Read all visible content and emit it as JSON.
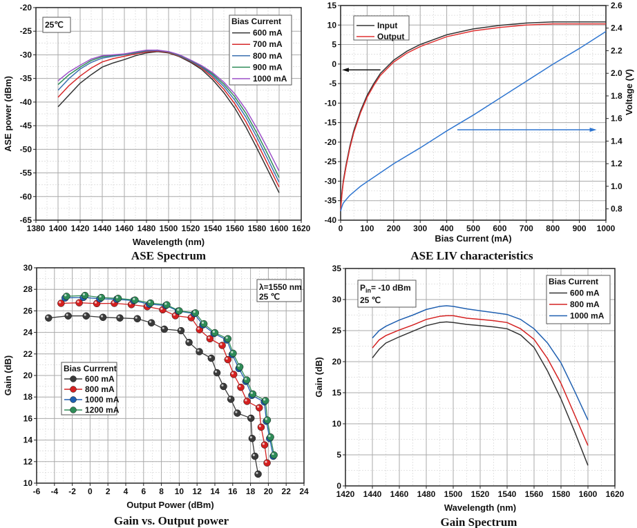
{
  "chart_data": [
    {
      "type": "line",
      "title": "ASE Spectrum",
      "xlabel": "Wavelength (nm)",
      "ylabel": "ASE power (dBm)",
      "xlim": [
        1380,
        1620
      ],
      "xticks_step": 20,
      "ylim": [
        -65,
        -20
      ],
      "yticks_step": 5,
      "grid": true,
      "annotation": [
        "25℃"
      ],
      "legend": {
        "title": "Bias Current",
        "placement": "top-right"
      },
      "series": [
        {
          "name": "600 mA",
          "color": "#333333",
          "x": [
            1400,
            1410,
            1420,
            1430,
            1440,
            1450,
            1460,
            1470,
            1480,
            1490,
            1500,
            1510,
            1520,
            1530,
            1540,
            1550,
            1560,
            1570,
            1580,
            1590,
            1600
          ],
          "y": [
            -41,
            -38.5,
            -36,
            -34.2,
            -32.6,
            -31.7,
            -31,
            -30.2,
            -29.6,
            -29.3,
            -29.6,
            -30.4,
            -31.6,
            -33.1,
            -35.3,
            -38,
            -41.3,
            -45.3,
            -49.8,
            -54.5,
            -59.2
          ]
        },
        {
          "name": "700 mA",
          "color": "#d62728",
          "x": [
            1400,
            1410,
            1420,
            1430,
            1440,
            1450,
            1460,
            1470,
            1480,
            1490,
            1500,
            1510,
            1520,
            1530,
            1540,
            1550,
            1560,
            1570,
            1580,
            1590,
            1600
          ],
          "y": [
            -39,
            -36.5,
            -34.5,
            -32.8,
            -31.5,
            -30.8,
            -30.3,
            -29.8,
            -29.4,
            -29.2,
            -29.5,
            -30.3,
            -31.4,
            -32.8,
            -34.8,
            -37.3,
            -40.4,
            -44.2,
            -48.6,
            -53.3,
            -58
          ]
        },
        {
          "name": "800 mA",
          "color": "#3a6fb0",
          "x": [
            1400,
            1410,
            1420,
            1430,
            1440,
            1450,
            1460,
            1470,
            1480,
            1490,
            1500,
            1510,
            1520,
            1530,
            1540,
            1550,
            1560,
            1570,
            1580,
            1590,
            1600
          ],
          "y": [
            -37.5,
            -35,
            -33,
            -31.6,
            -30.7,
            -30.3,
            -30,
            -29.6,
            -29.2,
            -29.1,
            -29.4,
            -30.2,
            -31.3,
            -32.6,
            -34.4,
            -36.7,
            -39.6,
            -43.2,
            -47.5,
            -52.2,
            -57
          ]
        },
        {
          "name": "900 mA",
          "color": "#2e8b57",
          "x": [
            1400,
            1410,
            1420,
            1430,
            1440,
            1450,
            1460,
            1470,
            1480,
            1490,
            1500,
            1510,
            1520,
            1530,
            1540,
            1550,
            1560,
            1570,
            1580,
            1590,
            1600
          ],
          "y": [
            -36.3,
            -34.2,
            -32.6,
            -31.2,
            -30.4,
            -30.1,
            -29.9,
            -29.5,
            -29.1,
            -29,
            -29.4,
            -30.1,
            -31.2,
            -32.4,
            -34.1,
            -36.2,
            -38.9,
            -42.4,
            -46.6,
            -51.2,
            -56
          ]
        },
        {
          "name": "1000 mA",
          "color": "#9b4fc7",
          "x": [
            1400,
            1410,
            1420,
            1430,
            1440,
            1450,
            1460,
            1470,
            1480,
            1490,
            1500,
            1510,
            1520,
            1530,
            1540,
            1550,
            1560,
            1570,
            1580,
            1590,
            1600
          ],
          "y": [
            -35.5,
            -33.6,
            -32.2,
            -30.9,
            -30.2,
            -30,
            -29.8,
            -29.4,
            -29,
            -29,
            -29.3,
            -30,
            -31.1,
            -32.3,
            -33.8,
            -35.8,
            -38.3,
            -41.6,
            -45.6,
            -50,
            -54.6
          ]
        }
      ],
      "caption": "ASE Spectrum"
    },
    {
      "type": "line",
      "title": "ASE LIV characteristics",
      "xlabel": "Bias Current (mA)",
      "ylabel": "",
      "ylabel_right": "Voltage (V)",
      "xlim": [
        0,
        1000
      ],
      "xticks_step": 100,
      "ylim": [
        -40,
        15
      ],
      "yticks_step": 5,
      "ylim_right": [
        0.7,
        2.6
      ],
      "yticks_right": [
        0.8,
        1.0,
        1.2,
        1.4,
        1.6,
        1.8,
        2.0,
        2.2,
        2.4,
        2.6
      ],
      "grid": true,
      "legend": {
        "placement": "top-left"
      },
      "series": [
        {
          "name": "Input",
          "color": "#333333",
          "axis": "left",
          "x": [
            0,
            5,
            10,
            20,
            35,
            50,
            75,
            100,
            125,
            150,
            200,
            250,
            300,
            400,
            500,
            600,
            700,
            800,
            900,
            1000
          ],
          "y": [
            -37,
            -33,
            -30,
            -26,
            -21,
            -17,
            -12,
            -8,
            -5,
            -2.4,
            1,
            3.3,
            5,
            7.5,
            9,
            9.9,
            10.5,
            10.8,
            10.8,
            10.8
          ]
        },
        {
          "name": "Output",
          "color": "#e03030",
          "axis": "left",
          "x": [
            0,
            5,
            10,
            20,
            35,
            50,
            75,
            100,
            125,
            150,
            200,
            250,
            300,
            400,
            500,
            600,
            700,
            800,
            900,
            1000
          ],
          "y": [
            -37.5,
            -33.5,
            -30.5,
            -26.5,
            -21.5,
            -17.5,
            -12.5,
            -8.5,
            -5.5,
            -2.9,
            0.5,
            2.8,
            4.5,
            7,
            8.5,
            9.4,
            10,
            10.3,
            10.3,
            10.3
          ]
        },
        {
          "color": "#2e75d0",
          "axis": "right",
          "x": [
            0,
            5,
            10,
            20,
            35,
            50,
            75,
            100,
            150,
            200,
            300,
            400,
            500,
            600,
            700,
            800,
            900,
            1000
          ],
          "y": [
            0.78,
            0.82,
            0.85,
            0.88,
            0.92,
            0.95,
            1.0,
            1.04,
            1.12,
            1.2,
            1.34,
            1.49,
            1.63,
            1.78,
            1.93,
            2.08,
            2.22,
            2.37
          ]
        }
      ],
      "caption": "ASE LIV characteristics"
    },
    {
      "type": "line",
      "title": "Gain vs. Output power",
      "xlabel": "Output Power (dBm)",
      "ylabel": "Gain (dB)",
      "xlim": [
        -6,
        24
      ],
      "xticks_step": 2,
      "ylim": [
        10,
        30
      ],
      "yticks_step": 2,
      "grid": true,
      "annotation": [
        "λ=1550 nm",
        "25 ℃"
      ],
      "legend": {
        "title": "Bias Currrent",
        "placement": "middle-left"
      },
      "series": [
        {
          "name": "600 mA",
          "color": "#3a3a3a",
          "x": [
            -4.66,
            -2.46,
            -0.44,
            1.45,
            3.34,
            5.3,
            6.88,
            8.33,
            10.2,
            11.1,
            12.26,
            13.6,
            14.24,
            14.97,
            15.8,
            16.52,
            18.05,
            18.18,
            18.49,
            18.85
          ],
          "y": [
            25.34,
            25.53,
            25.53,
            25.4,
            25.34,
            25.27,
            24.89,
            24.3,
            24.16,
            23.07,
            22.21,
            21.6,
            20.25,
            18.98,
            17.79,
            16.5,
            16.03,
            14.15,
            12.5,
            10.84
          ]
        },
        {
          "name": "800 mA",
          "color": "#d42020",
          "x": [
            -3.26,
            -1.22,
            0.75,
            2.72,
            4.63,
            6.41,
            8.15,
            9.57,
            11.35,
            12.28,
            13.45,
            14.82,
            15.46,
            16.11,
            16.91,
            17.61,
            18.98,
            19.19,
            19.58,
            19.86
          ],
          "y": [
            26.7,
            26.75,
            26.68,
            26.7,
            26.58,
            26.39,
            26.1,
            25.55,
            25.36,
            24.25,
            23.41,
            22.79,
            21.47,
            20.1,
            18.9,
            17.6,
            17.0,
            15.2,
            13.55,
            11.88
          ]
        },
        {
          "name": "1000 mA",
          "color": "#1f5fb0",
          "x": [
            -2.8,
            -0.75,
            1.1,
            3.0,
            4.9,
            6.65,
            8.5,
            9.9,
            11.7,
            12.65,
            13.9,
            15.35,
            15.95,
            16.7,
            17.48,
            18.15,
            19.55,
            19.78,
            20.15,
            20.55
          ],
          "y": [
            27.2,
            27.25,
            27.12,
            27.08,
            26.95,
            26.62,
            26.5,
            25.98,
            25.75,
            24.7,
            23.9,
            23.3,
            21.95,
            20.65,
            19.45,
            18.15,
            17.55,
            15.75,
            14.15,
            12.5
          ]
        },
        {
          "name": "1200 mA",
          "color": "#2e8b57",
          "x": [
            -2.64,
            -0.57,
            1.27,
            3.15,
            5.04,
            6.78,
            8.61,
            10.0,
            11.82,
            12.77,
            14.0,
            15.46,
            16.05,
            16.8,
            17.58,
            18.26,
            19.68,
            19.89,
            20.25,
            20.64
          ],
          "y": [
            27.35,
            27.43,
            27.24,
            27.16,
            27.0,
            26.73,
            26.56,
            26.0,
            25.81,
            24.8,
            23.97,
            23.41,
            22.06,
            20.8,
            19.58,
            18.28,
            17.66,
            15.86,
            14.28,
            12.61
          ]
        }
      ],
      "caption": "Gain vs. Output power"
    },
    {
      "type": "line",
      "title": "Gain Spectrum",
      "xlabel": "Wavelength (nm)",
      "ylabel": "Gain (dB)",
      "xlim": [
        1420,
        1620
      ],
      "xticks_step": 20,
      "ylim": [
        0,
        35
      ],
      "yticks_step": 5,
      "grid": true,
      "annotation": [
        "P",
        "in",
        "= -10 dBm",
        "25 ℃"
      ],
      "legend": {
        "title": "Bias Current",
        "placement": "top-right"
      },
      "series": [
        {
          "name": "600 mA",
          "color": "#333333",
          "x": [
            1440,
            1445,
            1450,
            1460,
            1470,
            1480,
            1490,
            1495,
            1500,
            1510,
            1520,
            1530,
            1540,
            1550,
            1560,
            1570,
            1580,
            1590,
            1600
          ],
          "y": [
            20.6,
            22,
            23,
            24,
            24.9,
            25.8,
            26.3,
            26.4,
            26.3,
            26,
            25.8,
            25.6,
            25.3,
            24.3,
            22.3,
            18.5,
            14,
            8.8,
            3.3
          ]
        },
        {
          "name": "800 mA",
          "color": "#d42020",
          "x": [
            1440,
            1445,
            1450,
            1460,
            1470,
            1480,
            1490,
            1495,
            1500,
            1510,
            1520,
            1530,
            1540,
            1550,
            1560,
            1570,
            1580,
            1590,
            1600
          ],
          "y": [
            22.2,
            23.5,
            24.2,
            25.1,
            25.9,
            26.8,
            27.3,
            27.4,
            27.4,
            27,
            26.8,
            26.6,
            26.3,
            25.3,
            23.6,
            20.5,
            16.5,
            11.5,
            6.5
          ]
        },
        {
          "name": "1000 mA",
          "color": "#1f5fb0",
          "x": [
            1440,
            1445,
            1450,
            1460,
            1470,
            1480,
            1490,
            1495,
            1500,
            1510,
            1520,
            1530,
            1540,
            1550,
            1560,
            1570,
            1580,
            1590,
            1600
          ],
          "y": [
            23.8,
            25,
            25.7,
            26.7,
            27.5,
            28.4,
            28.9,
            29,
            28.9,
            28.5,
            28.2,
            27.9,
            27.6,
            26.8,
            25.3,
            23,
            19.8,
            15.3,
            10.6
          ]
        }
      ],
      "caption": "Gain Spectrum"
    }
  ]
}
